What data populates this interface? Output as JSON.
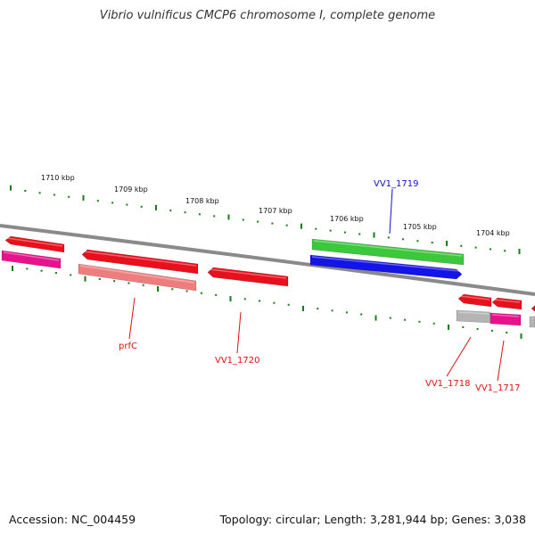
{
  "title": "Vibrio vulnificus CMCP6 chromosome I, complete genome",
  "footer": {
    "accession": "Accession: NC_004459",
    "summary": "Topology: circular; Length: 3,281,944 bp; Genes: 3,038"
  },
  "ruler": {
    "ticks": [
      {
        "label": "1710 kbp"
      },
      {
        "label": "1709 kbp"
      },
      {
        "label": "1708 kbp"
      },
      {
        "label": "1707 kbp"
      },
      {
        "label": "1706 kbp"
      },
      {
        "label": "1705 kbp"
      },
      {
        "label": "1704 kbp"
      }
    ]
  },
  "gene_labels": [
    {
      "text": "VV1_1719",
      "strand": "forward"
    },
    {
      "text": "prfC",
      "strand": "reverse"
    },
    {
      "text": "VV1_1720",
      "strand": "reverse"
    },
    {
      "text": "VV1_1718",
      "strand": "reverse"
    },
    {
      "text": "VV1_1717",
      "strand": "reverse"
    }
  ],
  "colors": {
    "backbone": "#8a8a8a",
    "tick": "#1a7a1a",
    "cds_red": "#e8101c",
    "cds_green": "#3cc83c",
    "cds_blue": "#1414e6",
    "cds_magenta": "#e8128c",
    "cds_pink": "#ef7d7d",
    "cds_grey": "#b4b4b4",
    "label_red": "#dd1111",
    "label_blue": "#1111cc"
  }
}
